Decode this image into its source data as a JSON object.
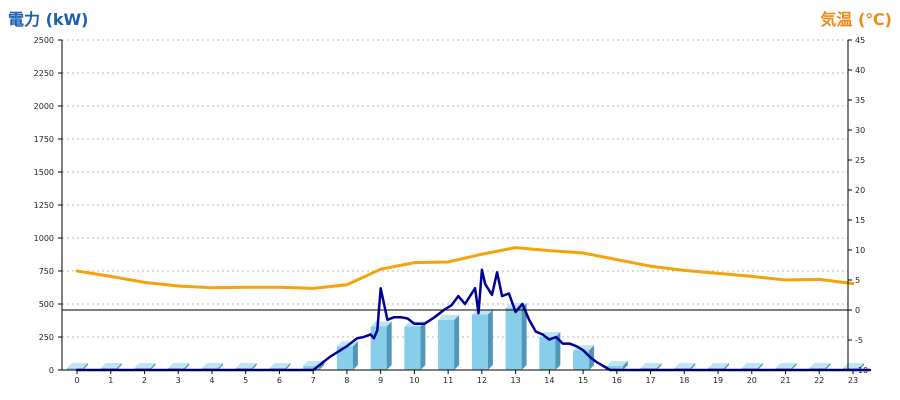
{
  "chart_data": {
    "type": "bar+line",
    "left_axis": {
      "label": "電力 (kW)",
      "min": 0,
      "max": 2500,
      "ticks": [
        0,
        250,
        500,
        750,
        1000,
        1250,
        1500,
        1750,
        2000,
        2250,
        2500
      ]
    },
    "right_axis": {
      "label": "気温 (℃)",
      "min": -10,
      "max": 45,
      "ticks": [
        -10,
        -5,
        0,
        5,
        10,
        15,
        20,
        25,
        30,
        35,
        40,
        45
      ]
    },
    "categories": [
      "0",
      "1",
      "2",
      "3",
      "4",
      "5",
      "6",
      "7",
      "8",
      "9",
      "10",
      "11",
      "12",
      "13",
      "14",
      "15",
      "16",
      "17",
      "18",
      "19",
      "20",
      "21",
      "22",
      "23"
    ],
    "grid": true,
    "series": [
      {
        "kind": "bar",
        "axis": "left",
        "values": [
          15,
          15,
          15,
          15,
          15,
          15,
          15,
          30,
          180,
          330,
          330,
          380,
          420,
          470,
          250,
          150,
          30,
          15,
          15,
          15,
          15,
          15,
          15,
          15
        ]
      },
      {
        "kind": "line",
        "axis": "left",
        "x": [
          0,
          6,
          7,
          7.5,
          8,
          8.3,
          8.5,
          8.7,
          8.8,
          8.9,
          9.0,
          9.2,
          9.4,
          9.6,
          9.8,
          10.0,
          10.3,
          10.6,
          10.9,
          11.1,
          11.3,
          11.5,
          11.6,
          11.8,
          11.9,
          12.0,
          12.1,
          12.3,
          12.45,
          12.6,
          12.8,
          13.0,
          13.2,
          13.4,
          13.6,
          13.8,
          14.0,
          14.2,
          14.4,
          14.6,
          14.8,
          15.0,
          15.2,
          15.4,
          15.6,
          15.8,
          16,
          23.5
        ],
        "values": [
          0,
          0,
          0,
          100,
          180,
          240,
          250,
          270,
          240,
          300,
          620,
          380,
          400,
          400,
          390,
          350,
          350,
          400,
          460,
          490,
          560,
          500,
          540,
          620,
          430,
          760,
          650,
          570,
          740,
          560,
          580,
          440,
          500,
          380,
          290,
          270,
          230,
          250,
          200,
          200,
          180,
          150,
          100,
          60,
          30,
          0,
          0,
          0
        ]
      },
      {
        "kind": "line",
        "axis": "right",
        "x": [
          0,
          1,
          2,
          3,
          4,
          5,
          6,
          7,
          8,
          9,
          10,
          11,
          12,
          13,
          14,
          15,
          16,
          17,
          18,
          19,
          20,
          21,
          22,
          23
        ],
        "values": [
          6.5,
          5.6,
          4.6,
          4.0,
          3.7,
          3.8,
          3.8,
          3.6,
          4.2,
          6.8,
          7.9,
          8.0,
          9.3,
          10.4,
          9.9,
          9.5,
          8.4,
          7.3,
          6.6,
          6.1,
          5.6,
          5.0,
          5.1,
          4.4
        ]
      }
    ],
    "colors": {
      "bar_front": "#87ceeb",
      "bar_side": "#4f97b8",
      "bar_top": "#bfe5f5",
      "power_line": "#000099",
      "temp_line": "#f5a20b",
      "grid": "#b8b8b8",
      "left_title": "#1a5fb4",
      "right_title": "#f08a18"
    }
  }
}
